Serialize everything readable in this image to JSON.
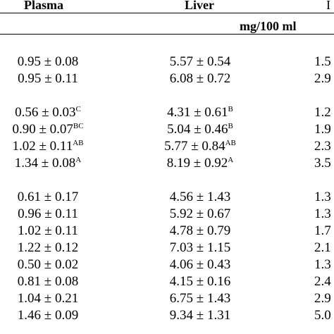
{
  "header": {
    "plasma": "Plasma",
    "liver": "Liver",
    "col3_fragment": "I",
    "unit": "mg/100 ml"
  },
  "groups": [
    {
      "rows": [
        {
          "plasma": "0.95 ± 0.08",
          "plasma_sup": "",
          "liver": "5.57 ± 0.54",
          "liver_sup": "",
          "col3": "1.5"
        },
        {
          "plasma": "0.95 ± 0.11",
          "plasma_sup": "",
          "liver": "6.08 ± 0.72",
          "liver_sup": "",
          "col3": "2.9"
        }
      ]
    },
    {
      "rows": [
        {
          "plasma": "0.56 ± 0.03",
          "plasma_sup": "C",
          "liver": "4.31 ± 0.61",
          "liver_sup": "B",
          "col3": "1.2"
        },
        {
          "plasma": "0.90 ± 0.07",
          "plasma_sup": "BC",
          "liver": "5.04 ± 0.46",
          "liver_sup": "B",
          "col3": "1.9"
        },
        {
          "plasma": "1.02 ± 0.11",
          "plasma_sup": "AB",
          "liver": "5.77 ± 0.84",
          "liver_sup": "AB",
          "col3": "2.3"
        },
        {
          "plasma": "1.34 ± 0.08",
          "plasma_sup": "A",
          "liver": "8.19 ± 0.92",
          "liver_sup": "A",
          "col3": "3.5"
        }
      ]
    },
    {
      "rows": [
        {
          "plasma": "0.61 ± 0.17",
          "plasma_sup": "",
          "liver": "4.56 ± 1.43",
          "liver_sup": "",
          "col3": "1.3"
        },
        {
          "plasma": "0.96 ± 0.11",
          "plasma_sup": "",
          "liver": "5.92 ± 0.67",
          "liver_sup": "",
          "col3": "1.3"
        },
        {
          "plasma": "1.02 ± 0.11",
          "plasma_sup": "",
          "liver": "4.78 ± 0.79",
          "liver_sup": "",
          "col3": "1.7"
        },
        {
          "plasma": "1.22 ± 0.12",
          "plasma_sup": "",
          "liver": "7.03 ± 1.15",
          "liver_sup": "",
          "col3": "2.1"
        },
        {
          "plasma": "0.50 ± 0.02",
          "plasma_sup": "",
          "liver": "4.06 ± 0.43",
          "liver_sup": "",
          "col3": "1.3"
        },
        {
          "plasma": "0.81 ± 0.08",
          "plasma_sup": "",
          "liver": "4.15 ± 0.16",
          "liver_sup": "",
          "col3": "2.4"
        },
        {
          "plasma": "1.04 ± 0.21",
          "plasma_sup": "",
          "liver": "6.75 ± 1.43",
          "liver_sup": "",
          "col3": "2.9"
        },
        {
          "plasma": "1.46 ± 0.09",
          "plasma_sup": "",
          "liver": "9.34 ± 1.31",
          "liver_sup": "",
          "col3": "5.0"
        }
      ]
    }
  ]
}
